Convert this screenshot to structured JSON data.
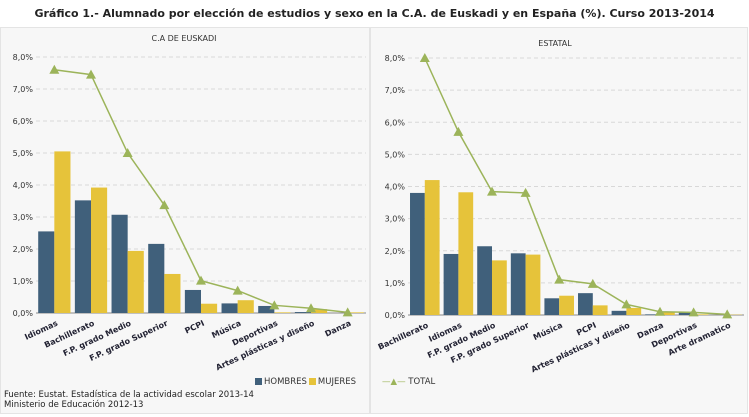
{
  "title": "Gráfico 1.- Alumnado por elección de estudios y sexo en la C.A. de Euskadi y en España (%). Curso 2013-2014",
  "colors": {
    "hombres": "#40607b",
    "mujeres": "#e6c33a",
    "total": "#9cb45a"
  },
  "legend": {
    "hombres": "HOMBRES",
    "mujeres": "MUJERES",
    "total": "TOTAL"
  },
  "source": [
    "Fuente: Eustat. Estadística de la actividad escolar 2013-14",
    "Ministerio de Educación 2012-13"
  ],
  "chart_data": [
    {
      "type": "bar",
      "title": "C.A DE EUSKADI",
      "ylim": [
        0,
        8
      ],
      "yticks": [
        "0,0%",
        "1,0%",
        "2,0%",
        "3,0%",
        "4,0%",
        "5,0%",
        "6,0%",
        "7,0%",
        "8,0%"
      ],
      "grid": true,
      "categories": [
        "Idiomas",
        "Bachillerato",
        "F.P. grado Medio",
        "F.P. grado Superior",
        "PCPI",
        "Música",
        "Deportivas",
        "Artes plásticas y diseño",
        "Danza"
      ],
      "series": [
        {
          "name": "HOMBRES",
          "type": "bar",
          "values": [
            2.55,
            3.52,
            3.07,
            2.16,
            0.72,
            0.3,
            0.22,
            0.03,
            0.0
          ]
        },
        {
          "name": "MUJERES",
          "type": "bar",
          "values": [
            5.05,
            3.92,
            1.94,
            1.22,
            0.29,
            0.4,
            0.02,
            0.12,
            0.02
          ]
        },
        {
          "name": "TOTAL",
          "type": "line",
          "values": [
            7.6,
            7.45,
            5.0,
            3.37,
            1.01,
            0.7,
            0.24,
            0.15,
            0.02
          ]
        }
      ]
    },
    {
      "type": "bar",
      "title": "ESTATAL",
      "ylim": [
        0,
        8
      ],
      "yticks": [
        "0,0%",
        "1,0%",
        "2,0%",
        "3,0%",
        "4,0%",
        "5,0%",
        "6,0%",
        "7,0%",
        "8,0%"
      ],
      "grid": true,
      "categories": [
        "Bachillerato",
        "Idiomas",
        "F.P. grado Medio",
        "F.P. grado Superior",
        "Música",
        "PCPI",
        "Artes plásticas y diseño",
        "Danza",
        "Deportivas",
        "Arte dramatico"
      ],
      "series": [
        {
          "name": "HOMBRES",
          "type": "bar",
          "values": [
            3.8,
            1.9,
            2.14,
            1.92,
            0.52,
            0.68,
            0.13,
            0.02,
            0.08,
            0.0
          ]
        },
        {
          "name": "MUJERES",
          "type": "bar",
          "values": [
            4.2,
            3.82,
            1.7,
            1.88,
            0.6,
            0.3,
            0.22,
            0.1,
            0.02,
            0.01
          ]
        },
        {
          "name": "TOTAL",
          "type": "line",
          "values": [
            8.0,
            5.7,
            3.84,
            3.8,
            1.1,
            0.97,
            0.33,
            0.1,
            0.08,
            0.02
          ]
        }
      ]
    }
  ]
}
